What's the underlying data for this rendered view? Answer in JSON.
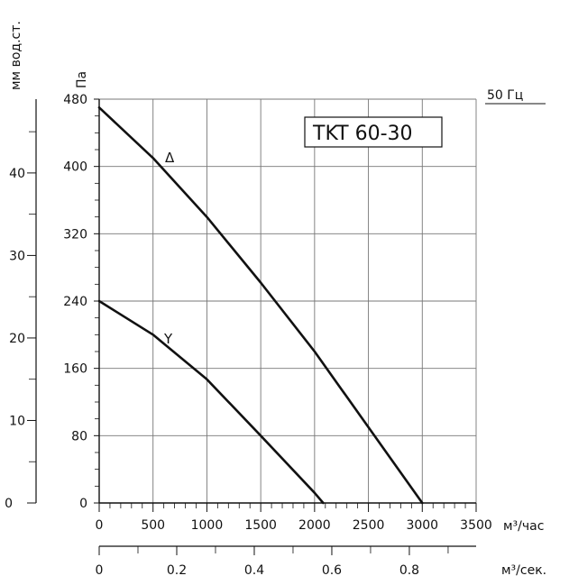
{
  "chart_data": {
    "type": "line",
    "title": "TKT 60-30",
    "frequency_label": "50 Гц",
    "x_unit_hour": "м³/час",
    "x_unit_sec": "м³/сек.",
    "y_unit_pa": "Па",
    "y_unit_mm": "мм вод.ст.",
    "xlim": [
      0,
      3500
    ],
    "ylim": [
      0,
      480
    ],
    "x_ticks": [
      0,
      500,
      1000,
      1500,
      2000,
      2500,
      3000,
      3500
    ],
    "y_ticks": [
      0,
      80,
      160,
      240,
      320,
      400,
      480
    ],
    "sec_ticks": [
      0,
      0.2,
      0.4,
      0.6,
      0.8
    ],
    "sec_tick_labels": [
      "0",
      "0.2",
      "0.4",
      "0.6",
      "0.8"
    ],
    "mm_ticks": [
      0,
      10,
      20,
      30,
      40
    ],
    "grid": true,
    "series": [
      {
        "name": "Δ",
        "x": [
          0,
          500,
          1000,
          1500,
          2000,
          2500,
          3000
        ],
        "y": [
          470,
          410,
          340,
          262,
          180,
          90,
          0
        ]
      },
      {
        "name": "Y",
        "x": [
          0,
          500,
          1000,
          1500,
          2000,
          2080
        ],
        "y": [
          240,
          200,
          147,
          80,
          12,
          0
        ]
      }
    ]
  }
}
